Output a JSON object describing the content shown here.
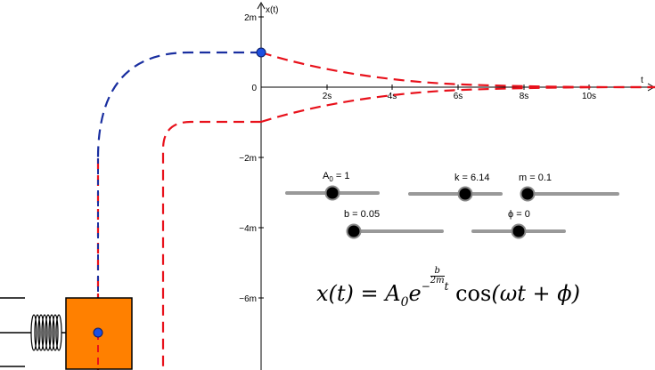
{
  "axes": {
    "y_label": "x(t)",
    "x_label": "t",
    "y_ticks": [
      "2m",
      "0",
      "−2m",
      "−4m",
      "−6m"
    ],
    "x_ticks": [
      "2s",
      "4s",
      "6s",
      "8s",
      "10s"
    ]
  },
  "sliders": [
    {
      "name": "slider-A0",
      "label_main": "A",
      "label_sub": "0",
      "label_rest": " = 1",
      "value": 1
    },
    {
      "name": "slider-k",
      "label": "k = 6.14",
      "value": 6.14
    },
    {
      "name": "slider-m",
      "label": "m = 0.1",
      "value": 0.1
    },
    {
      "name": "slider-b",
      "label": "b = 0.05",
      "value": 0.05
    },
    {
      "name": "slider-phi",
      "label": "ϕ = 0",
      "value": 0
    }
  ],
  "formula": {
    "lhs": "x(t) = A",
    "sub": "0",
    "e": "e",
    "minus": "−",
    "num": "b",
    "den": "2m",
    "t": "t",
    "cos": " cos",
    "arg": "(ωt + ϕ)"
  },
  "colors": {
    "envelope": "#e8111b",
    "trace": "#1a2fa0",
    "point": "#1d4fe0",
    "mass": "#ff8000",
    "slider_track": "#999999",
    "slider_knob": "#000000"
  }
}
